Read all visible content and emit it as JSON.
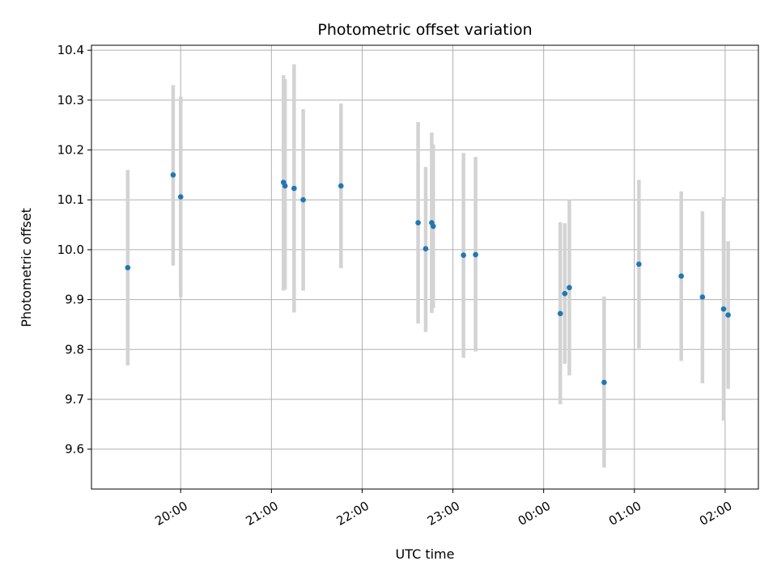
{
  "chart_data": {
    "type": "scatter",
    "title": "Photometric offset variation",
    "xlabel": "UTC time",
    "ylabel": "Photometric offset",
    "grid": true,
    "x_ticks": [
      "20:00",
      "21:00",
      "22:00",
      "23:00",
      "00:00",
      "01:00",
      "02:00"
    ],
    "y_ticks": [
      "9.6",
      "9.7",
      "9.8",
      "9.9",
      "10.0",
      "10.1",
      "10.2",
      "10.3",
      "10.4"
    ],
    "ylim": [
      9.52,
      10.41
    ],
    "xlim": [
      "19:01",
      "02:22"
    ],
    "marker_color": "#1f77b4",
    "errorbar_color": "#d3d3d3",
    "grid_color": "#b0b0b0",
    "points": [
      {
        "x": "19:25",
        "y": 9.964,
        "low": 9.768,
        "high": 10.16
      },
      {
        "x": "19:55",
        "y": 10.15,
        "low": 9.968,
        "high": 10.33
      },
      {
        "x": "20:00",
        "y": 10.106,
        "low": 9.905,
        "high": 10.307
      },
      {
        "x": "21:08",
        "y": 10.135,
        "low": 9.918,
        "high": 10.35
      },
      {
        "x": "21:09",
        "y": 10.128,
        "low": 9.92,
        "high": 10.342
      },
      {
        "x": "21:15",
        "y": 10.123,
        "low": 9.874,
        "high": 10.372
      },
      {
        "x": "21:21",
        "y": 10.1,
        "low": 9.918,
        "high": 10.282
      },
      {
        "x": "21:46",
        "y": 10.128,
        "low": 9.963,
        "high": 10.293
      },
      {
        "x": "22:37",
        "y": 10.054,
        "low": 9.852,
        "high": 10.256
      },
      {
        "x": "22:42",
        "y": 10.002,
        "low": 9.835,
        "high": 10.166
      },
      {
        "x": "22:46",
        "y": 10.054,
        "low": 9.873,
        "high": 10.235
      },
      {
        "x": "22:47",
        "y": 10.047,
        "low": 9.883,
        "high": 10.211
      },
      {
        "x": "23:07",
        "y": 9.989,
        "low": 9.783,
        "high": 10.194
      },
      {
        "x": "23:15",
        "y": 9.99,
        "low": 9.796,
        "high": 10.186
      },
      {
        "x": "00:11",
        "y": 9.872,
        "low": 9.69,
        "high": 10.055
      },
      {
        "x": "00:14",
        "y": 9.912,
        "low": 9.771,
        "high": 10.053
      },
      {
        "x": "00:17",
        "y": 9.924,
        "low": 9.748,
        "high": 10.1
      },
      {
        "x": "00:40",
        "y": 9.734,
        "low": 9.563,
        "high": 9.906
      },
      {
        "x": "01:03",
        "y": 9.971,
        "low": 9.802,
        "high": 10.14
      },
      {
        "x": "01:31",
        "y": 9.947,
        "low": 9.777,
        "high": 10.117
      },
      {
        "x": "01:45",
        "y": 9.905,
        "low": 9.732,
        "high": 10.077
      },
      {
        "x": "01:59",
        "y": 9.881,
        "low": 9.657,
        "high": 10.105
      },
      {
        "x": "02:02",
        "y": 9.869,
        "low": 9.721,
        "high": 10.017
      }
    ]
  }
}
